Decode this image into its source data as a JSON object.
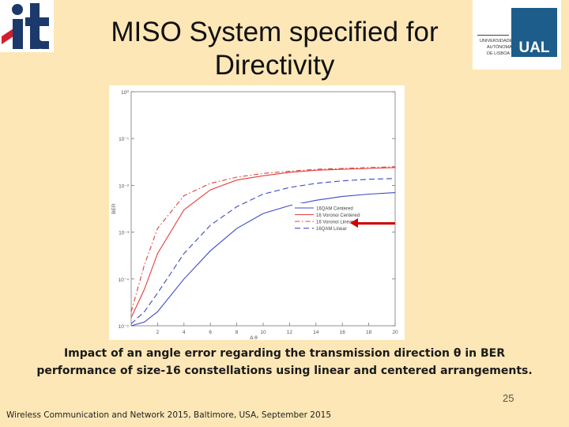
{
  "slide": {
    "title_line1": "MISO System specified for",
    "title_line2": "Directivity",
    "caption_line1": "Impact of an angle error regarding the transmission direction θ in BER",
    "caption_line2": "performance of size-16 constellations using linear and centered arrangements.",
    "page_number": "25",
    "footer": "Wireless Communication and Network 2015, Baltimore, USA, September 2015",
    "logo_left_text": "it",
    "logo_right_text": [
      "UNIVERSIDADE",
      "AUTÓNOMA",
      "DE LISBOA"
    ],
    "logo_right_mark": "UAL",
    "colors": {
      "background": "#fde7b6",
      "logo_red": "#d11f2e",
      "logo_navy": "#1b3a6b",
      "ual_blue": "#1d5d8b",
      "arrow": "#cc0000"
    }
  },
  "chart_data": {
    "type": "line",
    "xlabel": "Δ θ",
    "ylabel": "BER",
    "xlim": [
      0,
      20
    ],
    "ylim": [
      1e-05,
      1
    ],
    "yscale": "log",
    "x_ticks": [
      "2",
      "4",
      "6",
      "8",
      "10",
      "12",
      "14",
      "16",
      "18",
      "20"
    ],
    "y_ticks": [
      "10⁰",
      "10⁻¹",
      "10⁻²",
      "10⁻³",
      "10⁻⁴",
      "10⁻⁵"
    ],
    "legend_position": "center-right",
    "grid": false,
    "series": [
      {
        "name": "16QAM Centered",
        "color": "#3b4bc4",
        "dash": "solid",
        "x": [
          0,
          1,
          2,
          4,
          6,
          8,
          10,
          12,
          14,
          16,
          18,
          20
        ],
        "y": [
          1e-05,
          1.2e-05,
          2e-05,
          0.0001,
          0.0004,
          0.0012,
          0.0025,
          0.0037,
          0.0048,
          0.0058,
          0.0065,
          0.007
        ]
      },
      {
        "name": "16 Voronoi Centered",
        "color": "#e0403a",
        "dash": "solid",
        "x": [
          0,
          1,
          2,
          4,
          6,
          8,
          10,
          12,
          14,
          16,
          18,
          20
        ],
        "y": [
          1.5e-05,
          6e-05,
          0.00035,
          0.003,
          0.008,
          0.013,
          0.016,
          0.019,
          0.021,
          0.022,
          0.023,
          0.024
        ]
      },
      {
        "name": "16 Voronoi Linear",
        "color": "#e0403a",
        "dash": "6,3,1.5,3",
        "x": [
          0,
          1,
          2,
          4,
          6,
          8,
          10,
          12,
          14,
          16,
          18,
          20
        ],
        "y": [
          2e-05,
          0.0002,
          0.0012,
          0.006,
          0.011,
          0.015,
          0.018,
          0.02,
          0.022,
          0.023,
          0.024,
          0.025
        ]
      },
      {
        "name": "16QAM Linear",
        "color": "#3b4bc4",
        "dash": "7,4",
        "x": [
          0,
          1,
          2,
          4,
          6,
          8,
          10,
          12,
          14,
          16,
          18,
          20
        ],
        "y": [
          1.1e-05,
          2e-05,
          5e-05,
          0.00035,
          0.0014,
          0.0035,
          0.0065,
          0.009,
          0.011,
          0.0125,
          0.0135,
          0.014
        ]
      }
    ]
  }
}
